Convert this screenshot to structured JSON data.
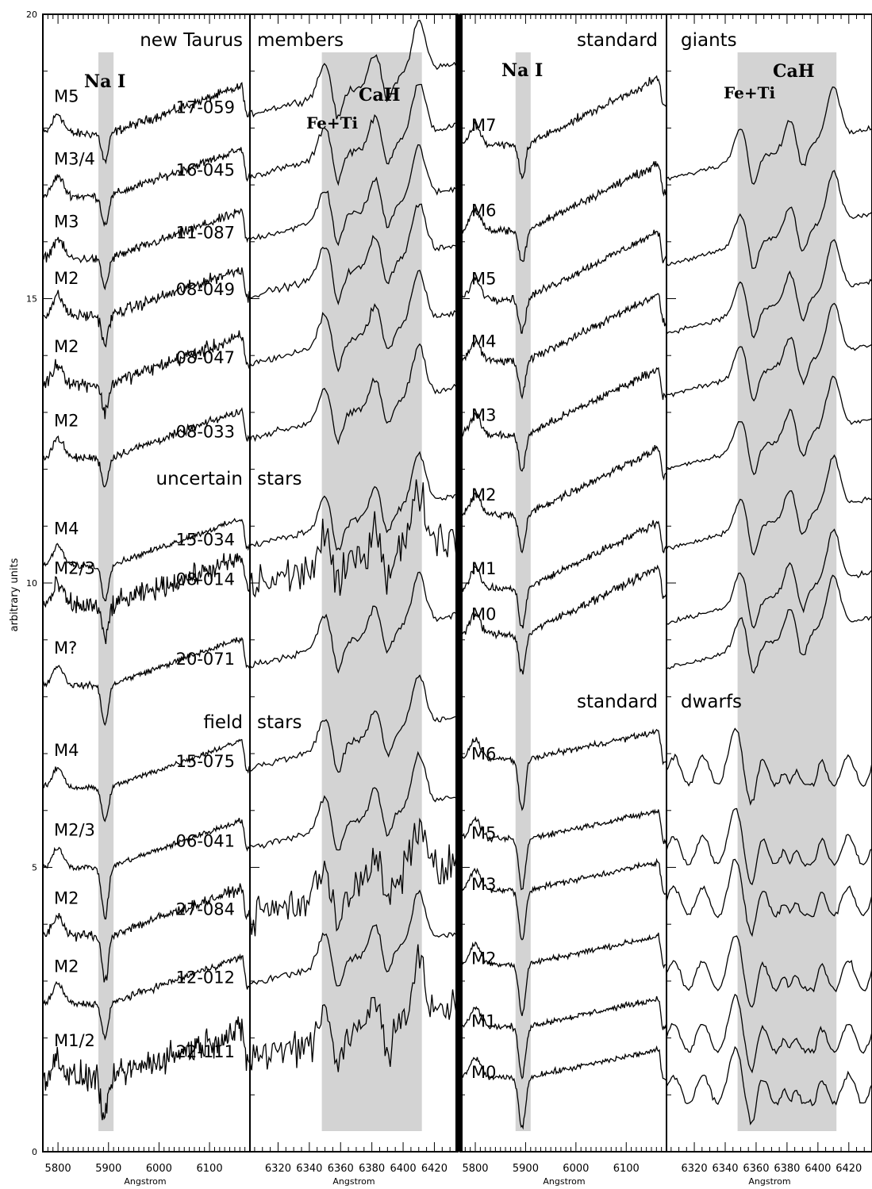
{
  "chart_data": {
    "type": "line",
    "ylabel": "arbitrary units",
    "ylim": [
      0,
      20
    ],
    "yticks": [
      0,
      5,
      10,
      15,
      20
    ],
    "colors": {
      "line": "#000000",
      "shade": "#d3d3d3",
      "background": "#ffffff"
    },
    "left_figure": {
      "group_headers": [
        {
          "left": "new Taurus",
          "right": "members"
        },
        {
          "left": "uncertain",
          "right": "stars"
        },
        {
          "left": "field",
          "right": "stars"
        }
      ],
      "stars": [
        {
          "type": "M5",
          "id": "17-059"
        },
        {
          "type": "M3/4",
          "id": "16-045"
        },
        {
          "type": "M3",
          "id": "11-087"
        },
        {
          "type": "M2",
          "id": "08-049"
        },
        {
          "type": "M2",
          "id": "08-047"
        },
        {
          "type": "M2",
          "id": "08-033"
        },
        {
          "type": "M4",
          "id": "15-034"
        },
        {
          "type": "M2/3",
          "id": "08-014"
        },
        {
          "type": "M?",
          "id": "20-071"
        },
        {
          "type": "M4",
          "id": "15-075"
        },
        {
          "type": "M2/3",
          "id": "06-041"
        },
        {
          "type": "M2",
          "id": "27-084"
        },
        {
          "type": "M2",
          "id": "12-012"
        },
        {
          "type": "M1/2",
          "id": "22-111"
        }
      ]
    },
    "right_figure": {
      "headers": [
        {
          "left": "standard",
          "right": "giants"
        },
        {
          "left": "standard",
          "right": "dwarfs"
        }
      ],
      "giants": [
        "M7",
        "M6",
        "M5",
        "M4",
        "M3",
        "M2",
        "M1",
        "M0"
      ],
      "dwarfs": [
        "M6",
        "M5",
        "M3",
        "M2",
        "M1",
        "M0"
      ]
    },
    "panels": [
      {
        "name": "wide",
        "xlim": [
          5770,
          6180
        ],
        "xticks": [
          "5800",
          "5900",
          "6000",
          "6100"
        ],
        "xlabel": "Angstrom",
        "shade": [
          5880,
          5910
        ],
        "feature_label": "Na I"
      },
      {
        "name": "narrow",
        "xlim": [
          6302,
          6435
        ],
        "xticks": [
          "6320",
          "6340",
          "6360",
          "6380",
          "6400",
          "6420"
        ],
        "xlabel": "Angstrom",
        "shade": [
          6348,
          6412
        ],
        "feature_labels": [
          "Fe+Ti",
          "CaH"
        ]
      }
    ]
  }
}
